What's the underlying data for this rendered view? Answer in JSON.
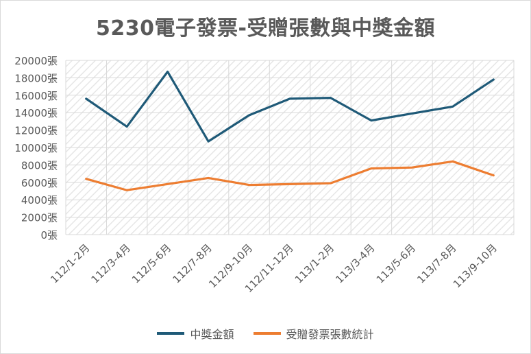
{
  "chart_data": {
    "type": "line",
    "title": "5230電子發票-受贈張數與中獎金額",
    "categories": [
      "112/1-2月",
      "112/3-4月",
      "112/5-6月",
      "112/7-8月",
      "112/9-10月",
      "112/11-12月",
      "113/1-2月",
      "113/3-4月",
      "113/5-6月",
      "113/7-8月",
      "113/9-10月"
    ],
    "series": [
      {
        "name": "中獎金額",
        "color": "#1f5a78",
        "values": [
          15600,
          12400,
          18700,
          10700,
          13700,
          15600,
          15700,
          13100,
          13900,
          14700,
          17800
        ]
      },
      {
        "name": "受贈發票張數統計",
        "color": "#ed7d31",
        "values": [
          6400,
          5100,
          5800,
          6500,
          5700,
          5800,
          5900,
          7600,
          7700,
          8400,
          6800
        ]
      }
    ],
    "ylim": [
      0,
      20000
    ],
    "yticks": [
      "0張",
      "2000張",
      "4000張",
      "6000張",
      "8000張",
      "10000張",
      "12000張",
      "14000張",
      "16000張",
      "18000張",
      "20000張"
    ],
    "grid": true,
    "legend_position": "bottom"
  }
}
